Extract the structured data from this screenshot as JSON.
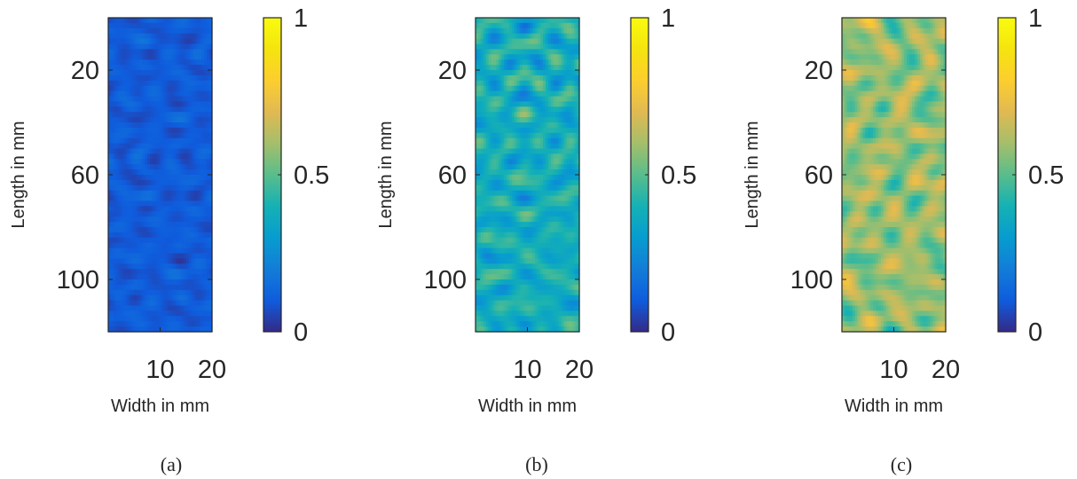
{
  "chart_data": [
    {
      "type": "heatmap",
      "caption": "(a)",
      "xlabel": "Width in mm",
      "ylabel": "Length in mm",
      "x_ticks": [
        10,
        20
      ],
      "y_ticks": [
        20,
        60,
        100
      ],
      "xlim": [
        0,
        20
      ],
      "ylim": [
        0,
        120
      ],
      "y_reversed": true,
      "colorbar": {
        "min": 0,
        "max": 1,
        "ticks": [
          0,
          0.5,
          1
        ],
        "colormap": "parula"
      },
      "grid_size": [
        40,
        60
      ],
      "value_range": [
        0.02,
        0.22
      ],
      "mean_value": 0.1,
      "note": "values estimated from color; fine cell pattern approximate"
    },
    {
      "type": "heatmap",
      "caption": "(b)",
      "xlabel": "Width in mm",
      "ylabel": "Length in mm",
      "x_ticks": [
        10,
        20
      ],
      "y_ticks": [
        20,
        60,
        100
      ],
      "xlim": [
        0,
        20
      ],
      "ylim": [
        0,
        120
      ],
      "y_reversed": true,
      "colorbar": {
        "min": 0,
        "max": 1,
        "ticks": [
          0,
          0.5,
          1
        ],
        "colormap": "parula"
      },
      "grid_size": [
        40,
        60
      ],
      "value_range": [
        0.15,
        0.72
      ],
      "mean_value": 0.38,
      "note": "values estimated from color; fine cell pattern approximate"
    },
    {
      "type": "heatmap",
      "caption": "(c)",
      "xlabel": "Width in mm",
      "ylabel": "Length in mm",
      "x_ticks": [
        10,
        20
      ],
      "y_ticks": [
        20,
        60,
        100
      ],
      "xlim": [
        0,
        20
      ],
      "ylim": [
        0,
        120
      ],
      "y_reversed": true,
      "colorbar": {
        "min": 0,
        "max": 1,
        "ticks": [
          0,
          0.5,
          1
        ],
        "colormap": "parula"
      },
      "grid_size": [
        40,
        60
      ],
      "value_range": [
        0.25,
        0.85
      ],
      "mean_value": 0.58,
      "note": "values estimated from color; fine cell pattern approximate"
    }
  ]
}
